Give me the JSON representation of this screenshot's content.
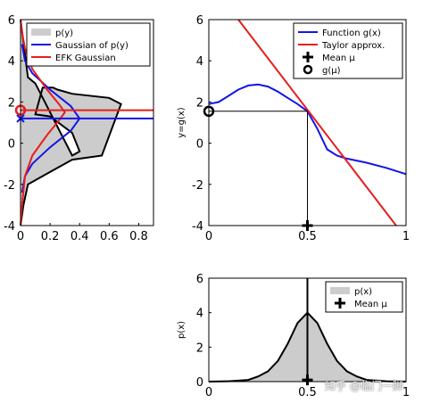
{
  "colors": {
    "blue": "#1414e6",
    "red": "#e61e1e",
    "black": "#000000",
    "fill": "#cccccc"
  },
  "watermark": "知乎 @临门一脚",
  "chart_data": [
    {
      "id": "left",
      "type": "area",
      "orientation": "horizontal",
      "xlim": [
        0,
        0.9
      ],
      "ylim": [
        -4,
        6
      ],
      "xticks": [
        "0",
        "0.2",
        "0.4",
        "0.6",
        "0.8"
      ],
      "yticks": [
        "-4",
        "-2",
        "0",
        "2",
        "4",
        "6"
      ],
      "legend_position": "top-right",
      "legend": [
        "p(y)",
        "Gaussian of p(y)",
        "EFK Gaussian"
      ],
      "series": [
        {
          "name": "p(y)",
          "type": "filled-line",
          "x": [
            0,
            0.02,
            0.05,
            0.2,
            0.35,
            0.55,
            0.68,
            0.6,
            0.35,
            0.25,
            0.22,
            0.15,
            0.1,
            0.2,
            0.35,
            0.4,
            0.35,
            0.1,
            0.05,
            0
          ],
          "y": [
            -4,
            -3,
            -2,
            -1.4,
            -0.8,
            -0.6,
            1.9,
            2.2,
            2.4,
            2.6,
            2.7,
            2.7,
            1.4,
            1.3,
            0.5,
            -0.4,
            -0.6,
            2.9,
            3.2,
            6
          ]
        },
        {
          "name": "Gaussian of p(y)",
          "type": "line",
          "x": [
            0.01,
            0.03,
            0.08,
            0.2,
            0.34,
            0.4,
            0.34,
            0.2,
            0.08,
            0.03,
            0.01
          ],
          "y": [
            -2.4,
            -1.6,
            -1,
            -0.2,
            0.6,
            1.2,
            1.8,
            2.6,
            3.4,
            4,
            4.8
          ]
        },
        {
          "name": "EFK Gaussian",
          "type": "line",
          "x": [
            0,
            0.01,
            0.03,
            0.08,
            0.18,
            0.26,
            0.3,
            0.26,
            0.18,
            0.08,
            0.03,
            0.01,
            0
          ],
          "y": [
            -4,
            -3,
            -1.6,
            -0.6,
            0.4,
            1.1,
            1.5,
            1.9,
            2.6,
            3.6,
            4.6,
            5.4,
            6
          ]
        }
      ],
      "hlines": [
        {
          "y": 1.6,
          "color": "red"
        },
        {
          "y": 1.2,
          "color": "blue"
        }
      ],
      "markers": [
        {
          "y": 1.6,
          "x": 0,
          "shape": "circle",
          "color": "red"
        },
        {
          "y": 1.2,
          "x": 0,
          "shape": "x",
          "color": "blue"
        }
      ]
    },
    {
      "id": "right-top",
      "type": "line",
      "xlim": [
        0,
        1
      ],
      "ylim": [
        -4,
        6
      ],
      "xticks": [
        "0",
        "0.5",
        "1"
      ],
      "yticks": [
        "-4",
        "-2",
        "0",
        "2",
        "4",
        "6"
      ],
      "ylabel": "y=g(x)",
      "legend_position": "top-right",
      "legend": [
        "Function g(x)",
        "Taylor approx.",
        "Mean μ",
        "g(μ)"
      ],
      "series": [
        {
          "name": "Function g(x)",
          "x": [
            0,
            0.05,
            0.1,
            0.15,
            0.2,
            0.25,
            0.3,
            0.35,
            0.4,
            0.45,
            0.5,
            0.55,
            0.6,
            0.65,
            0.7,
            0.8,
            0.9,
            1.0
          ],
          "y": [
            1.9,
            2.0,
            2.3,
            2.6,
            2.8,
            2.85,
            2.75,
            2.5,
            2.2,
            1.9,
            1.55,
            0.7,
            -0.3,
            -0.6,
            -0.75,
            -0.95,
            -1.2,
            -1.5
          ]
        },
        {
          "name": "Taylor approx.",
          "x": [
            0.15,
            0.95
          ],
          "y": [
            6,
            -4
          ]
        }
      ],
      "hlines": [
        {
          "y": 1.55,
          "x_to": 0.5
        }
      ],
      "vlines": [
        {
          "x": 0.5,
          "y_from": -4,
          "y_to": 1.55
        }
      ],
      "markers": [
        {
          "x": 0.5,
          "y": -4,
          "shape": "plus",
          "label": "Mean μ"
        },
        {
          "x": 0,
          "y": 1.55,
          "shape": "circle",
          "label": "g(μ)"
        }
      ]
    },
    {
      "id": "right-bottom",
      "type": "area",
      "xlim": [
        0,
        1
      ],
      "ylim": [
        0,
        6
      ],
      "xticks": [
        "0",
        "0.5",
        "1"
      ],
      "yticks": [
        "0",
        "2",
        "4",
        "6"
      ],
      "ylabel": "p(x)",
      "legend_position": "top-right",
      "legend": [
        "p(x)",
        "Mean μ"
      ],
      "series": [
        {
          "name": "p(x)",
          "x": [
            0,
            0.1,
            0.2,
            0.25,
            0.3,
            0.35,
            0.4,
            0.45,
            0.5,
            0.55,
            0.6,
            0.65,
            0.7,
            0.75,
            0.8,
            0.9,
            1.0
          ],
          "y": [
            0,
            0.02,
            0.1,
            0.3,
            0.6,
            1.2,
            2.2,
            3.4,
            4.0,
            3.4,
            2.2,
            1.2,
            0.6,
            0.3,
            0.1,
            0.02,
            0
          ]
        }
      ],
      "vlines": [
        {
          "x": 0.5,
          "y_from": 0,
          "y_to": 6
        }
      ],
      "markers": [
        {
          "x": 0.5,
          "y": 0.1,
          "shape": "plus",
          "label": "Mean μ"
        }
      ]
    }
  ]
}
